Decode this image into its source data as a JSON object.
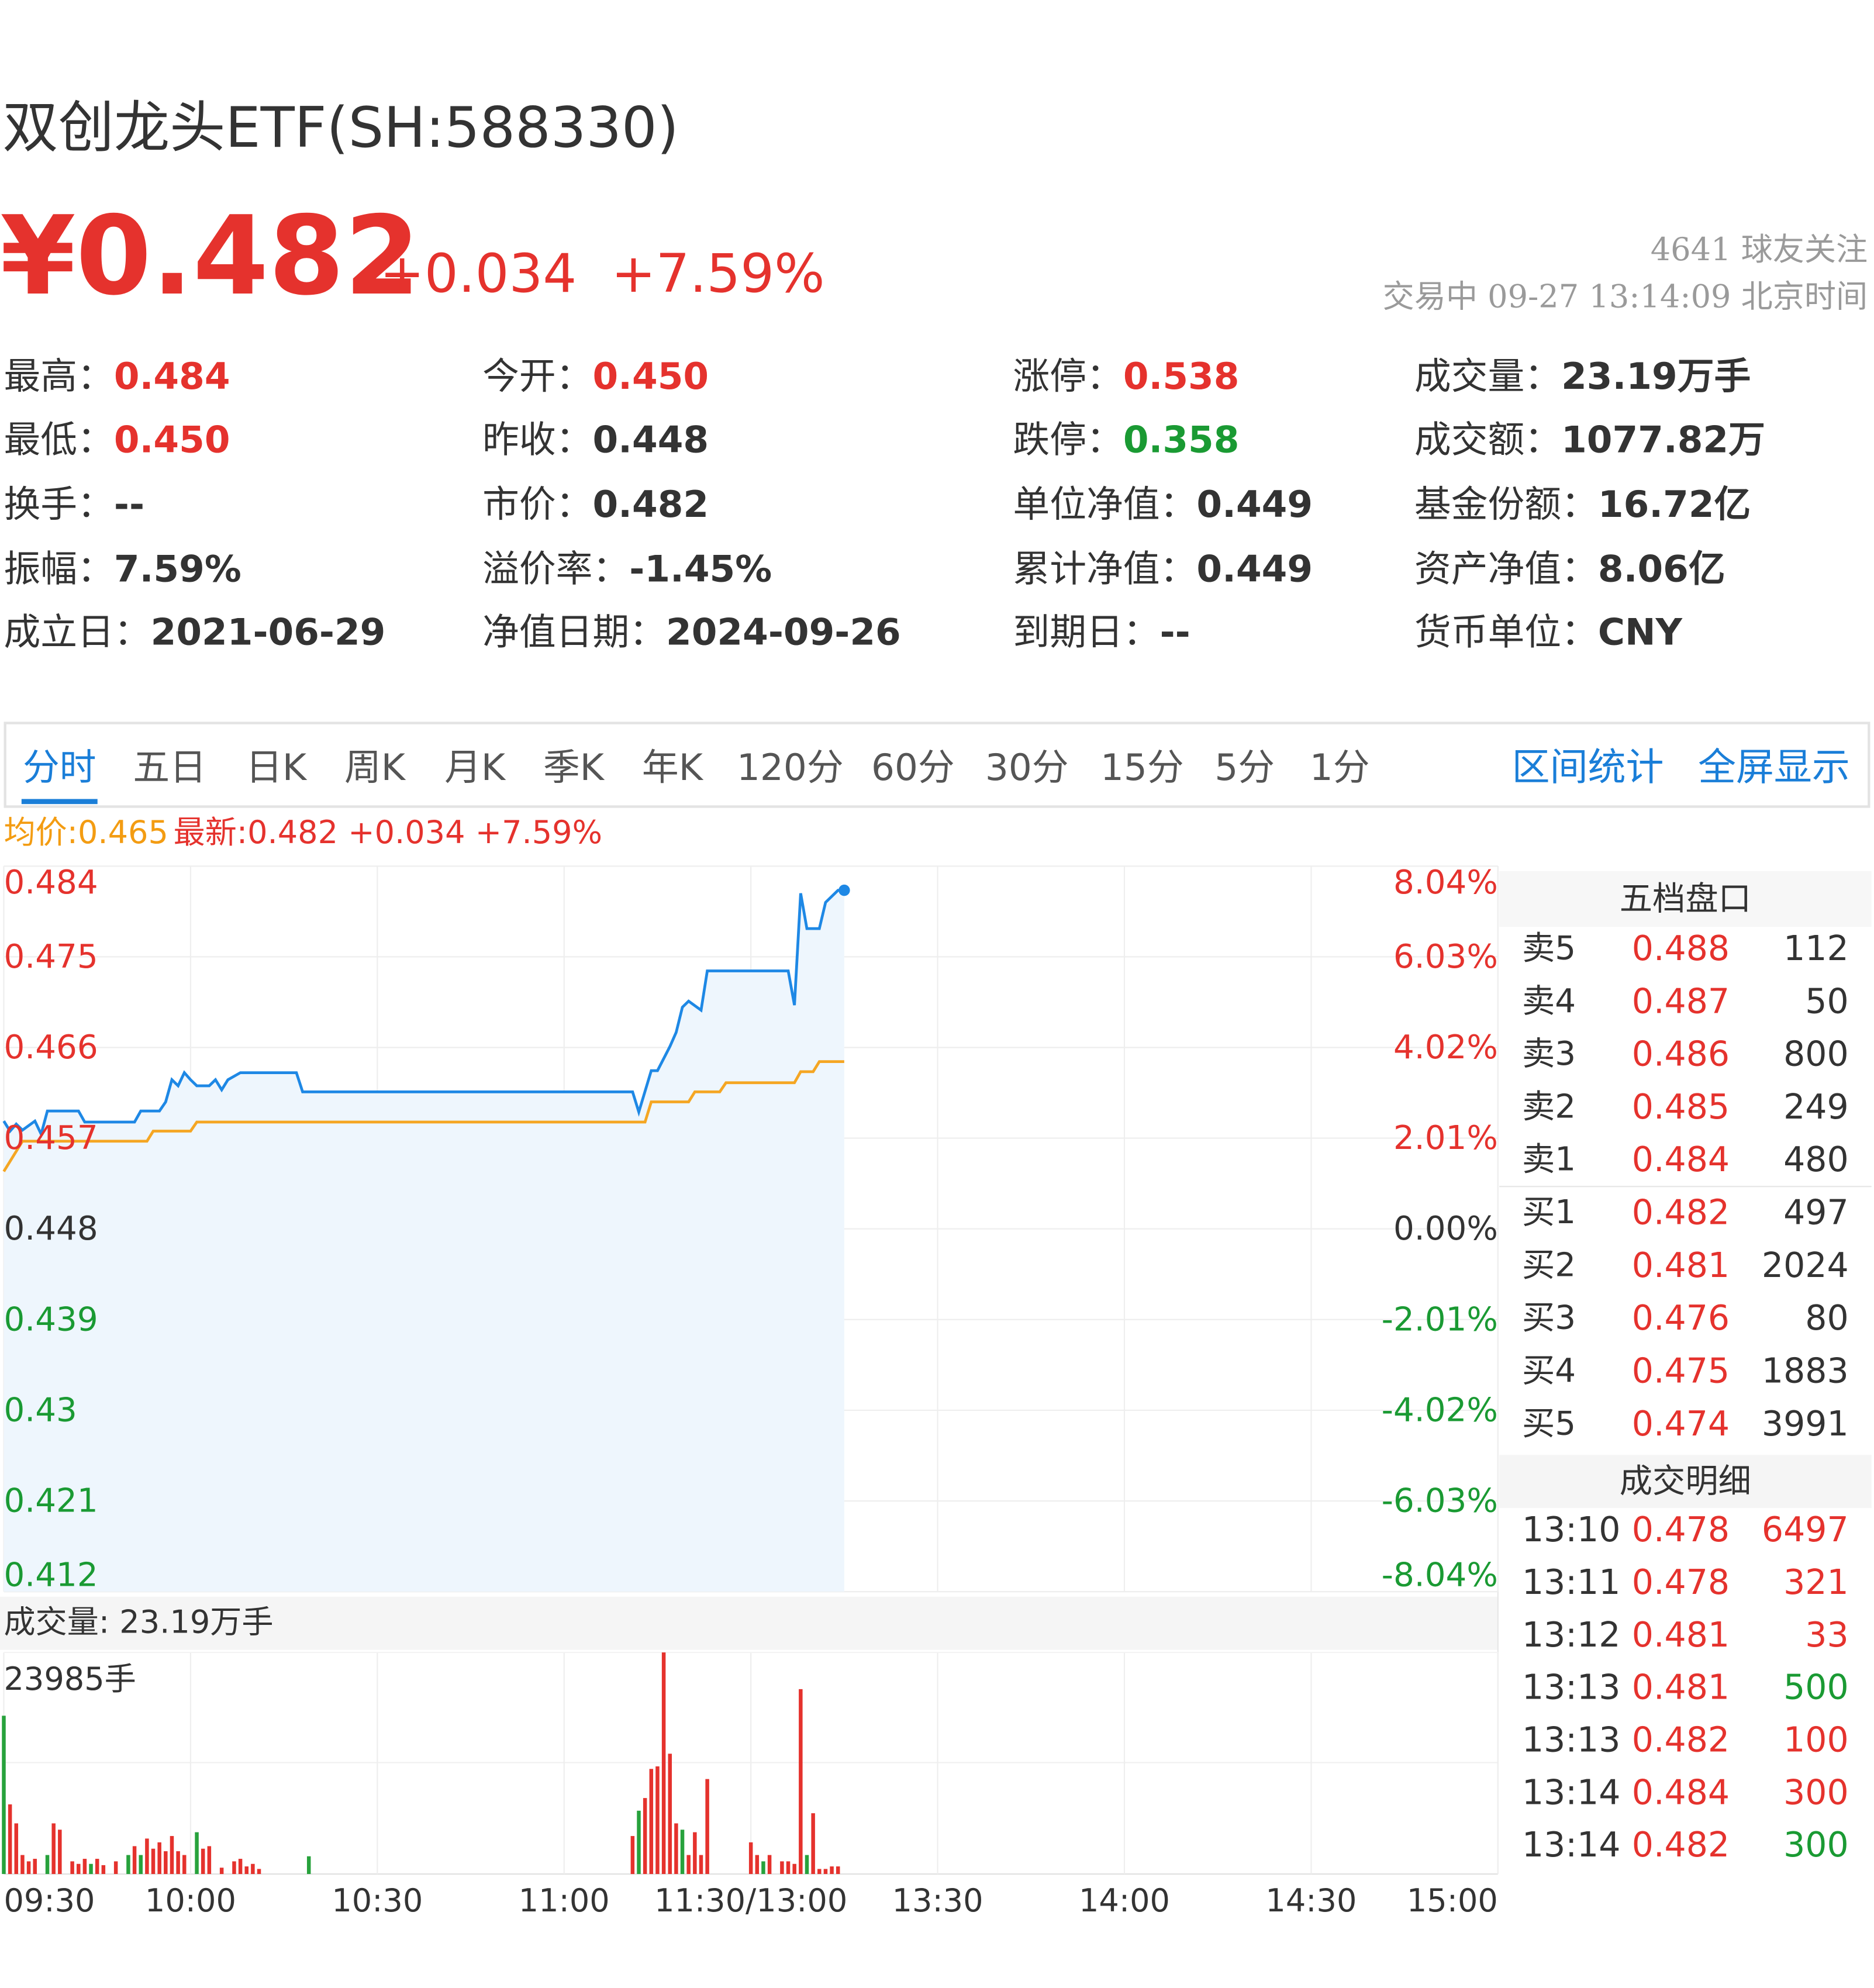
{
  "header": {
    "title": "双创龙头ETF(SH:588330)",
    "price": "¥0.482",
    "change": "+0.034",
    "change_pct": "+7.59%",
    "followers": "4641  球友关注",
    "status": "交易中  09-27 13:14:09 北京时间",
    "color": "#e5322d"
  },
  "stats": [
    {
      "label": "最高：",
      "value": "0.484",
      "color": "#e5322d"
    },
    {
      "label": "今开：",
      "value": "0.450",
      "color": "#e5322d"
    },
    {
      "label": "涨停：",
      "value": "0.538",
      "color": "#e5322d"
    },
    {
      "label": "成交量：",
      "value": "23.19万手",
      "color": "#333333"
    },
    {
      "label": "最低：",
      "value": "0.450",
      "color": "#e5322d"
    },
    {
      "label": "昨收：",
      "value": "0.448",
      "color": "#333333"
    },
    {
      "label": "跌停：",
      "value": "0.358",
      "color": "#1a9a33"
    },
    {
      "label": "成交额：",
      "value": "1077.82万",
      "color": "#333333"
    },
    {
      "label": "换手：",
      "value": "--",
      "color": "#333333"
    },
    {
      "label": "市价：",
      "value": "0.482",
      "color": "#333333"
    },
    {
      "label": "单位净值：",
      "value": "0.449",
      "color": "#333333"
    },
    {
      "label": "基金份额：",
      "value": "16.72亿",
      "color": "#333333"
    },
    {
      "label": "振幅：",
      "value": "7.59%",
      "color": "#333333"
    },
    {
      "label": "溢价率：",
      "value": "-1.45%",
      "color": "#333333"
    },
    {
      "label": "累计净值：",
      "value": "0.449",
      "color": "#333333"
    },
    {
      "label": "资产净值：",
      "value": "8.06亿",
      "color": "#333333"
    },
    {
      "label": "成立日：",
      "value": "2021-06-29",
      "color": "#333333"
    },
    {
      "label": "净值日期：",
      "value": "2024-09-26",
      "color": "#333333"
    },
    {
      "label": "到期日：",
      "value": "--",
      "color": "#333333"
    },
    {
      "label": "货币单位：",
      "value": "CNY",
      "color": "#333333"
    }
  ],
  "tabs": {
    "items": [
      "分时",
      "五日",
      "日K",
      "周K",
      "月K",
      "季K",
      "年K",
      "120分",
      "60分",
      "30分",
      "15分",
      "5分",
      "1分"
    ],
    "active": 0,
    "tools": [
      "区间统计",
      "全屏显示"
    ]
  },
  "chart_data": [
    {
      "type": "line",
      "legend_avg": "均价:0.465",
      "legend_avg_color": "#f39c12",
      "legend_last": "最新:0.482 +0.034 +7.59%",
      "legend_last_color": "#e5322d",
      "xlim": [
        0,
        240
      ],
      "ylim": [
        0.412,
        0.484
      ],
      "yticks": [
        0.484,
        0.475,
        0.466,
        0.457,
        0.448,
        0.439,
        0.43,
        0.421,
        0.412
      ],
      "y2lim": [
        -8.04,
        8.04
      ],
      "y2ticks": [
        {
          "value": 8.04,
          "label": "8.04%"
        },
        {
          "value": 6.03,
          "label": "6.03%"
        },
        {
          "value": 4.02,
          "label": "4.02%"
        },
        {
          "value": 2.01,
          "label": "2.01%"
        },
        {
          "value": 0,
          "label": "0.00%"
        },
        {
          "value": -2.01,
          "label": "-2.01%"
        },
        {
          "value": -4.02,
          "label": "-4.02%"
        },
        {
          "value": -6.03,
          "label": "-6.03%"
        },
        {
          "value": -8.04,
          "label": "-8.04%"
        }
      ],
      "grid": true,
      "series": [
        {
          "color": "#1e88e5",
          "fill": "#eef6fd",
          "x": [
            0,
            1,
            2,
            3,
            5,
            6,
            7,
            12,
            13,
            16,
            21,
            22,
            25,
            26,
            27,
            28,
            29,
            30,
            31,
            33,
            34,
            35,
            36,
            38,
            47,
            48,
            101,
            102,
            104,
            105,
            107,
            108,
            109,
            110,
            112,
            113,
            126,
            127,
            128,
            129,
            131,
            132,
            134,
            135
          ],
          "values": [
            0.4587,
            0.4577,
            0.4584,
            0.4578,
            0.4587,
            0.4574,
            0.4597,
            0.4597,
            0.4586,
            0.4586,
            0.4586,
            0.4597,
            0.4597,
            0.4606,
            0.4628,
            0.4622,
            0.4635,
            0.4628,
            0.4622,
            0.4622,
            0.4628,
            0.4618,
            0.4628,
            0.4635,
            0.4635,
            0.4616,
            0.4616,
            0.4596,
            0.4637,
            0.4637,
            0.4661,
            0.4675,
            0.47,
            0.4706,
            0.4697,
            0.4736,
            0.4736,
            0.4702,
            0.4813,
            0.4778,
            0.4778,
            0.4804,
            0.4816,
            0.4816
          ]
        },
        {
          "color": "#f5a623",
          "x": [
            0,
            3,
            23,
            24,
            30,
            31,
            103,
            104,
            110,
            111,
            115,
            116,
            127,
            128,
            130,
            131,
            135
          ],
          "values": [
            0.4537,
            0.4567,
            0.4567,
            0.4577,
            0.4577,
            0.4586,
            0.4586,
            0.4606,
            0.4606,
            0.4616,
            0.4616,
            0.4625,
            0.4625,
            0.4636,
            0.4636,
            0.4646,
            0.4646
          ]
        }
      ]
    },
    {
      "type": "bar",
      "label": "成交量: 23.19万手",
      "xlim": [
        0,
        240
      ],
      "xticks": [
        {
          "value": 0,
          "label": "09:30"
        },
        {
          "value": 30,
          "label": "10:00"
        },
        {
          "value": 60,
          "label": "10:30"
        },
        {
          "value": 90,
          "label": "11:00"
        },
        {
          "value": 120,
          "label": "11:30/13:00"
        },
        {
          "value": 150,
          "label": "13:30"
        },
        {
          "value": 180,
          "label": "14:00"
        },
        {
          "value": 210,
          "label": "14:30"
        },
        {
          "value": 240,
          "label": "15:00"
        }
      ],
      "ylim": [
        0,
        23985
      ],
      "yticks": [
        {
          "value": 23985,
          "label": "23985手"
        }
      ],
      "x": [
        0,
        1,
        2,
        3,
        4,
        5,
        7,
        8,
        9,
        11,
        12,
        13,
        14,
        15,
        16,
        18,
        20,
        21,
        22,
        23,
        24,
        25,
        26,
        27,
        28,
        29,
        31,
        32,
        33,
        35,
        37,
        38,
        39,
        40,
        41,
        49,
        101,
        102,
        103,
        104,
        105,
        106,
        107,
        108,
        109,
        110,
        111,
        112,
        113,
        120,
        121,
        122,
        123,
        125,
        126,
        127,
        128,
        129,
        130,
        131,
        132,
        133,
        134
      ],
      "values": [
        17133,
        7538,
        5482,
        2056,
        1371,
        1645,
        2056,
        5482,
        4797,
        1371,
        1096,
        1645,
        1096,
        1645,
        959,
        1371,
        2056,
        3015,
        2056,
        3838,
        2741,
        3427,
        2467,
        4112,
        2467,
        2056,
        4523,
        2741,
        3015,
        685,
        1371,
        1645,
        822,
        1096,
        548,
        1919,
        4112,
        6853,
        8224,
        11376,
        11650,
        23985,
        13021,
        5482,
        4797,
        2056,
        4523,
        2056,
        10280,
        3427,
        2056,
        1371,
        2056,
        1371,
        1371,
        1096,
        20011,
        2056,
        6579,
        548,
        548,
        822,
        822
      ],
      "colors": [
        "#27a23c",
        "#e5322d",
        "#e5322d",
        "#e5322d",
        "#e5322d",
        "#e5322d",
        "#27a23c",
        "#e5322d",
        "#e5322d",
        "#e5322d",
        "#e5322d",
        "#e5322d",
        "#27a23c",
        "#e5322d",
        "#e5322d",
        "#e5322d",
        "#27a23c",
        "#e5322d",
        "#27a23c",
        "#e5322d",
        "#e5322d",
        "#e5322d",
        "#e5322d",
        "#e5322d",
        "#e5322d",
        "#e5322d",
        "#27a23c",
        "#e5322d",
        "#e5322d",
        "#e5322d",
        "#e5322d",
        "#e5322d",
        "#e5322d",
        "#e5322d",
        "#e5322d",
        "#27a23c",
        "#e5322d",
        "#27a23c",
        "#e5322d",
        "#e5322d",
        "#e5322d",
        "#e5322d",
        "#e5322d",
        "#e5322d",
        "#27a23c",
        "#e5322d",
        "#e5322d",
        "#e5322d",
        "#e5322d",
        "#e5322d",
        "#e5322d",
        "#27a23c",
        "#e5322d",
        "#e5322d",
        "#e5322d",
        "#e5322d",
        "#e5322d",
        "#27a23c",
        "#e5322d",
        "#e5322d",
        "#e5322d",
        "#e5322d",
        "#e5322d"
      ]
    }
  ],
  "order_book": {
    "title": "五档盘口",
    "price_color": "#e5322d",
    "rows": [
      [
        "卖5",
        "0.488",
        "112"
      ],
      [
        "卖4",
        "0.487",
        "50"
      ],
      [
        "卖3",
        "0.486",
        "800"
      ],
      [
        "卖2",
        "0.485",
        "249"
      ],
      [
        "卖1",
        "0.484",
        "480"
      ],
      [
        "买1",
        "0.482",
        "497"
      ],
      [
        "买2",
        "0.481",
        "2024"
      ],
      [
        "买3",
        "0.476",
        "80"
      ],
      [
        "买4",
        "0.475",
        "1883"
      ],
      [
        "买5",
        "0.474",
        "3991"
      ]
    ]
  },
  "trades": {
    "title": "成交明细",
    "price_color": "#e5322d",
    "rows": [
      {
        "time": "13:10",
        "price": "0.478",
        "volume": "6497",
        "color": "#e5322d"
      },
      {
        "time": "13:11",
        "price": "0.478",
        "volume": "321",
        "color": "#e5322d"
      },
      {
        "time": "13:12",
        "price": "0.481",
        "volume": "33",
        "color": "#e5322d"
      },
      {
        "time": "13:13",
        "price": "0.481",
        "volume": "500",
        "color": "#1a9a33"
      },
      {
        "time": "13:13",
        "price": "0.482",
        "volume": "100",
        "color": "#e5322d"
      },
      {
        "time": "13:14",
        "price": "0.484",
        "volume": "300",
        "color": "#e5322d"
      },
      {
        "time": "13:14",
        "price": "0.482",
        "volume": "300",
        "color": "#1a9a33"
      }
    ]
  }
}
